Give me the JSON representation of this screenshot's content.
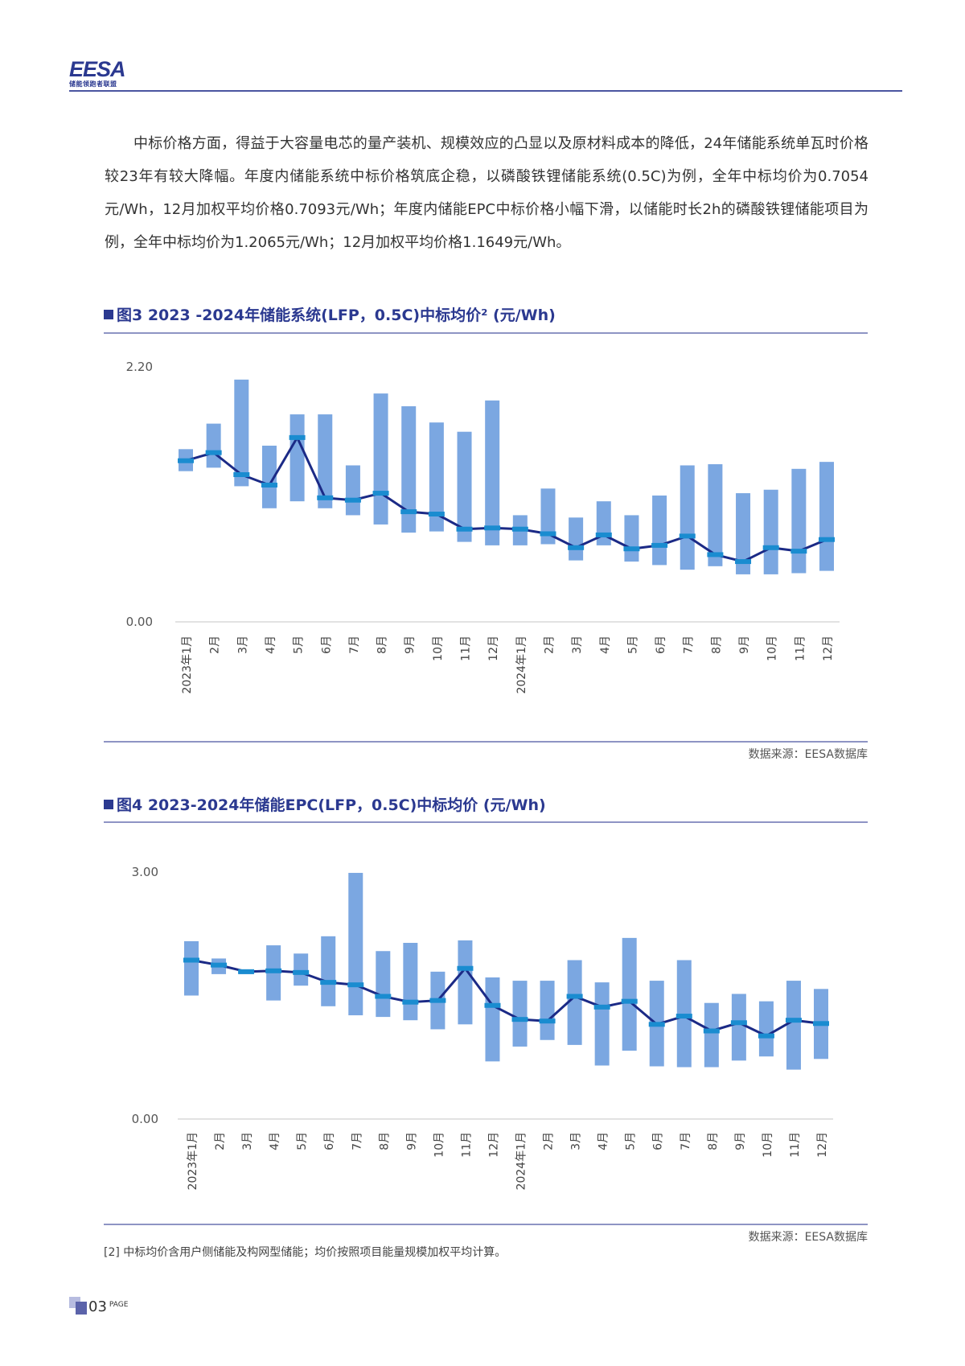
{
  "header": {
    "logo_text": "EESA",
    "logo_subtitle": "储能领跑者联盟"
  },
  "paragraph": "中标价格方面，得益于大容量电芯的量产装机、规模效应的凸显以及原材料成本的降低，24年储能系统单瓦时价格较23年有较大降幅。年度内储能系统中标价格筑底企稳，以磷酸铁锂储能系统(0.5C)为例，全年中标均价为0.7054元/Wh，12月加权平均价格0.7093元/Wh；年度内储能EPC中标价格小幅下滑，以储能时长2h的磷酸铁锂储能项目为例，全年中标均价为1.2065元/Wh；12月加权平均价格1.1649元/Wh。",
  "figures": [
    {
      "title": "图3 2023 -2024年储能系统(LFP，0.5C)中标均价² (元/Wh)",
      "source": "数据来源：EESA数据库"
    },
    {
      "title": "图4 2023-2024年储能EPC(LFP，0.5C)中标均价 (元/Wh)",
      "source": "数据来源：EESA数据库"
    }
  ],
  "footnote": "[2] 中标均价含用户侧储能及构网型储能；均价按照项目能量规模加权平均计算。",
  "page": {
    "number": "03",
    "label": "PAGE"
  },
  "colors": {
    "bar": "#7ba7e1",
    "line": "#1b2a86",
    "marker": "#1a8cd0",
    "accent": "#2b3990"
  },
  "chart_data": [
    {
      "type": "bar-range+line",
      "categories": [
        "2023年1月",
        "2月",
        "3月",
        "4月",
        "5月",
        "6月",
        "7月",
        "8月",
        "9月",
        "10月",
        "11月",
        "12月",
        "2024年1月",
        "2月",
        "3月",
        "4月",
        "5月",
        "6月",
        "7月",
        "8月",
        "9月",
        "10月",
        "11月",
        "12月"
      ],
      "ylim": [
        0,
        2.2
      ],
      "yticks": [
        "0.00",
        "2.20"
      ],
      "grid": false,
      "range_low": [
        1.3,
        1.33,
        1.17,
        0.98,
        1.04,
        0.98,
        0.92,
        0.84,
        0.77,
        0.78,
        0.69,
        0.66,
        0.66,
        0.67,
        0.53,
        0.66,
        0.52,
        0.49,
        0.45,
        0.48,
        0.41,
        0.41,
        0.42,
        0.44
      ],
      "range_high": [
        1.49,
        1.71,
        2.09,
        1.52,
        1.79,
        1.79,
        1.35,
        1.97,
        1.86,
        1.72,
        1.64,
        1.91,
        0.92,
        1.15,
        0.9,
        1.04,
        0.92,
        1.09,
        1.35,
        1.36,
        1.11,
        1.14,
        1.32,
        1.38
      ],
      "average": [
        1.39,
        1.46,
        1.27,
        1.18,
        1.59,
        1.07,
        1.05,
        1.11,
        0.95,
        0.93,
        0.8,
        0.81,
        0.8,
        0.76,
        0.64,
        0.75,
        0.63,
        0.66,
        0.74,
        0.58,
        0.52,
        0.64,
        0.61,
        0.71
      ]
    },
    {
      "type": "bar-range+line",
      "categories": [
        "2023年1月",
        "2月",
        "3月",
        "4月",
        "5月",
        "6月",
        "7月",
        "8月",
        "9月",
        "10月",
        "11月",
        "12月",
        "2024年1月",
        "2月",
        "3月",
        "4月",
        "5月",
        "6月",
        "7月",
        "8月",
        "9月",
        "10月",
        "11月",
        "12月"
      ],
      "ylim": [
        0,
        3.0
      ],
      "yticks": [
        "0.00",
        "3.00"
      ],
      "grid": false,
      "range_low": [
        1.5,
        1.76,
        1.76,
        1.44,
        1.62,
        1.37,
        1.26,
        1.24,
        1.2,
        1.09,
        1.15,
        0.7,
        0.88,
        0.96,
        0.9,
        0.65,
        0.83,
        0.64,
        0.63,
        0.63,
        0.71,
        0.76,
        0.6,
        0.73
      ],
      "range_high": [
        2.16,
        1.95,
        1.81,
        2.11,
        2.01,
        2.22,
        2.99,
        2.04,
        2.14,
        1.79,
        2.17,
        1.72,
        1.68,
        1.68,
        1.93,
        1.66,
        2.2,
        1.68,
        1.93,
        1.41,
        1.52,
        1.43,
        1.68,
        1.58
      ],
      "average": [
        1.93,
        1.87,
        1.79,
        1.8,
        1.78,
        1.66,
        1.63,
        1.49,
        1.42,
        1.44,
        1.83,
        1.38,
        1.21,
        1.19,
        1.49,
        1.36,
        1.43,
        1.15,
        1.25,
        1.07,
        1.17,
        1.01,
        1.2,
        1.16
      ]
    }
  ]
}
